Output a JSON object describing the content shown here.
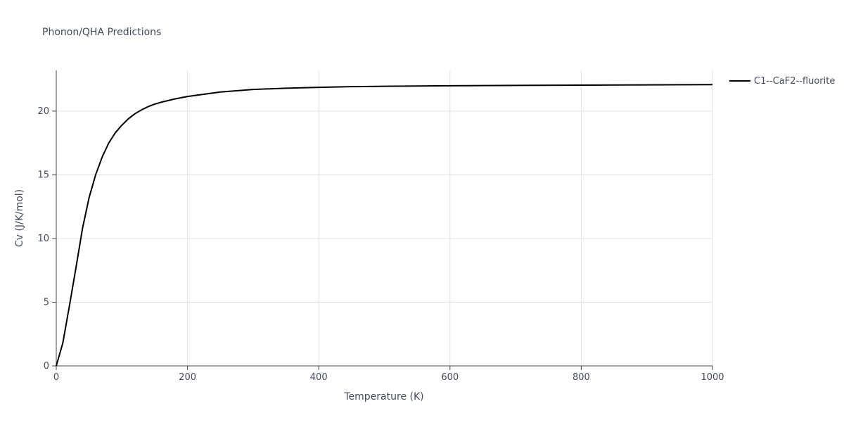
{
  "chart_data": {
    "type": "line",
    "title": "Phonon/QHA Predictions",
    "x_label": "Temperature (K)",
    "y_label": "Cv (J/K/mol)",
    "xlim": [
      0,
      1000
    ],
    "ylim": [
      0,
      23.2
    ],
    "xticks": [
      0,
      200,
      400,
      600,
      800,
      1000
    ],
    "yticks": [
      0,
      5,
      10,
      15,
      20
    ],
    "grid": true,
    "legend_position": "top-right",
    "x": [
      0,
      10,
      20,
      30,
      40,
      50,
      60,
      70,
      80,
      90,
      100,
      110,
      120,
      130,
      140,
      150,
      160,
      180,
      200,
      250,
      300,
      350,
      400,
      450,
      500,
      600,
      700,
      800,
      900,
      1000
    ],
    "series": [
      {
        "name": "C1--CaF2--fluorite",
        "color": "#000000",
        "values": [
          0,
          1.8,
          4.7,
          7.7,
          10.8,
          13.2,
          15.0,
          16.4,
          17.5,
          18.3,
          18.9,
          19.4,
          19.8,
          20.1,
          20.35,
          20.55,
          20.7,
          20.95,
          21.15,
          21.5,
          21.7,
          21.8,
          21.87,
          21.92,
          21.95,
          21.99,
          22.02,
          22.04,
          22.06,
          22.08
        ]
      }
    ]
  }
}
